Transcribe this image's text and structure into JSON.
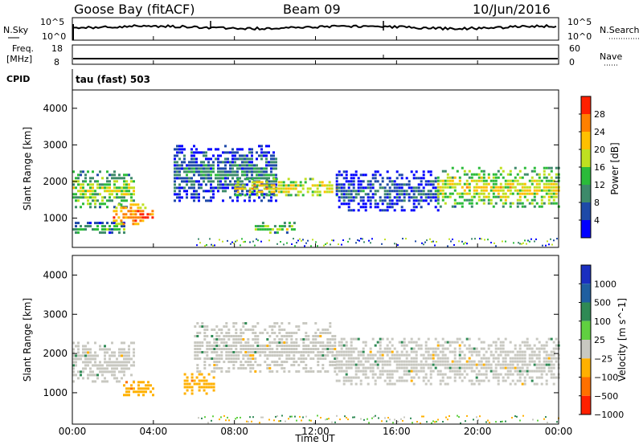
{
  "header": {
    "station": "Goose Bay (fitACF)",
    "beam": "Beam 09",
    "date": "10/Jun/2016"
  },
  "panels": {
    "nsky": {
      "label_top": "N.Sky",
      "ticks": [
        "10^5",
        "10^0"
      ],
      "right_label": "N.Search",
      "right_ticks": [
        "10^5",
        "10^0"
      ]
    },
    "freq": {
      "label_line1": "Freq.",
      "label_line2": "[MHz]",
      "ticks": [
        "18",
        "8"
      ],
      "right_label": "Nave",
      "right_ticks": [
        "60",
        "0"
      ]
    },
    "cpid": {
      "label": "CPID",
      "value": "tau (fast) 503"
    }
  },
  "chart_data": [
    {
      "type": "heatmap",
      "name": "power",
      "ylabel": "Slant Range [km]",
      "ylim": [
        200,
        4500
      ],
      "yticks": [
        "1000",
        "2000",
        "3000",
        "4000"
      ],
      "xlim": [
        0,
        24
      ],
      "colorbar": {
        "label": "Power [dB]",
        "ticks": [
          "4",
          "8",
          "12",
          "16",
          "20",
          "24",
          "28"
        ],
        "colors": [
          "#0000ff",
          "#1e4aa8",
          "#3d8a6a",
          "#2bbb3a",
          "#bfe020",
          "#ffc000",
          "#ff8000",
          "#ff2000"
        ]
      },
      "echo_bands": [
        {
          "t0": 0.0,
          "t1": 3.0,
          "r0": 1300,
          "r1": 2300,
          "level": 18
        },
        {
          "t0": 0.0,
          "t1": 2.5,
          "r0": 600,
          "r1": 900,
          "level": 14
        },
        {
          "t0": 2.0,
          "t1": 4.0,
          "r0": 800,
          "r1": 1400,
          "level": 28
        },
        {
          "t0": 5.0,
          "t1": 10.0,
          "r0": 1500,
          "r1": 3000,
          "level": 10
        },
        {
          "t0": 8.0,
          "t1": 13.0,
          "r0": 1600,
          "r1": 2100,
          "level": 22
        },
        {
          "t0": 9.0,
          "t1": 11.0,
          "r0": 600,
          "r1": 900,
          "level": 18
        },
        {
          "t0": 13.0,
          "t1": 18.0,
          "r0": 1200,
          "r1": 2300,
          "level": 8
        },
        {
          "t0": 18.0,
          "t1": 24.0,
          "r0": 1300,
          "r1": 2400,
          "level": 20
        }
      ]
    },
    {
      "type": "heatmap",
      "name": "velocity",
      "ylabel": "Slant Range [km]",
      "ylim": [
        200,
        4500
      ],
      "yticks": [
        "1000",
        "2000",
        "3000",
        "4000"
      ],
      "xlim": [
        0,
        24
      ],
      "xticks": [
        "00:00",
        "04:00",
        "08:00",
        "12:00",
        "16:00",
        "20:00",
        "00:00"
      ],
      "xlabel": "Time UT",
      "colorbar": {
        "label": "Velocity [m s^-1]",
        "ticks": [
          "1000",
          "500",
          "100",
          "25",
          "−25",
          "−100",
          "−500",
          "−1000"
        ],
        "colors": [
          "#1a2fc0",
          "#1f5fa0",
          "#2f8a55",
          "#60d040",
          "#c8c8c0",
          "#ffb000",
          "#ff7000",
          "#ff2000"
        ]
      },
      "echo_bands": [
        {
          "t0": 0.0,
          "t1": 3.0,
          "r0": 1300,
          "r1": 2300,
          "velocity": 0
        },
        {
          "t0": 2.5,
          "t1": 4.0,
          "r0": 900,
          "r1": 1300,
          "velocity": -150
        },
        {
          "t0": 5.5,
          "t1": 7.0,
          "r0": 1000,
          "r1": 1500,
          "velocity": -200
        },
        {
          "t0": 6.0,
          "t1": 13.0,
          "r0": 1500,
          "r1": 2800,
          "velocity": 0
        },
        {
          "t0": 13.0,
          "t1": 24.0,
          "r0": 1200,
          "r1": 2400,
          "velocity": 0
        }
      ]
    }
  ]
}
